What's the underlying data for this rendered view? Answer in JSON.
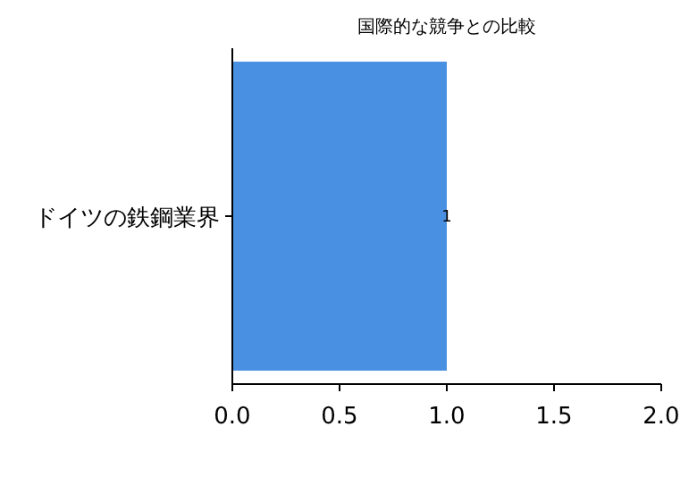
{
  "chart_data": {
    "type": "bar",
    "orientation": "horizontal",
    "title": "国際的な競争との比較",
    "categories": [
      "ドイツの鉄鋼業界"
    ],
    "values": [
      1
    ],
    "color": "#4a90e2",
    "xlim": [
      0,
      2
    ],
    "xticks": [
      {
        "value": 0,
        "label": "0.0"
      },
      0.5,
      {
        "value": 1,
        "label": "1.0"
      },
      1.5,
      {
        "value": 2,
        "label": "2.0"
      }
    ],
    "data_labels": true
  }
}
